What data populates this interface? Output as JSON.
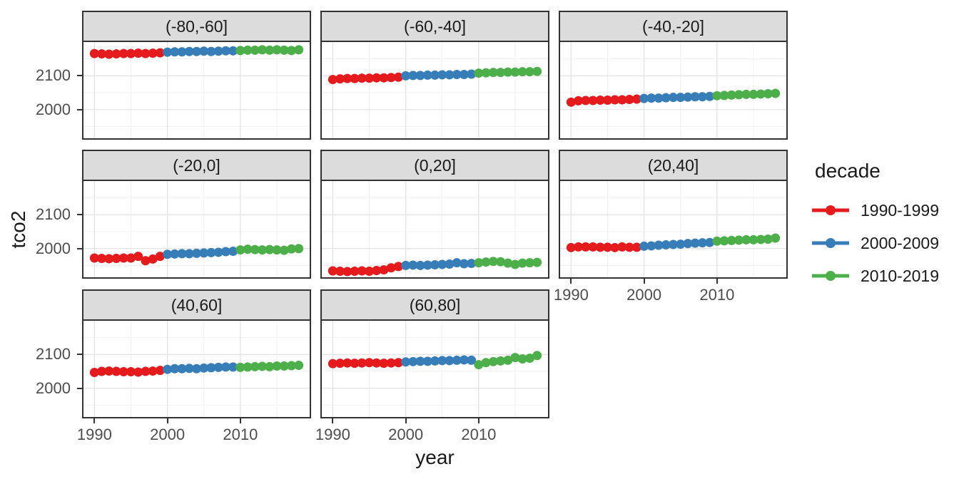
{
  "chart_data": {
    "type": "scatter",
    "xlabel": "year",
    "ylabel": "tco2",
    "x_ticks": [
      1990,
      2000,
      2010
    ],
    "y_ticks": [
      2100,
      2000
    ],
    "x_minor_breaks": [
      1995,
      2005,
      2015
    ],
    "y_minor_breaks": [
      2150,
      2050,
      1950
    ],
    "xlim": [
      1988.5,
      2019.5
    ],
    "ylim": [
      1915,
      2200
    ],
    "grid": true,
    "legend": {
      "title": "decade",
      "position": "right",
      "entries": [
        {
          "label": "1990-1999",
          "color": "#E41A1C"
        },
        {
          "label": "2000-2009",
          "color": "#377EB8"
        },
        {
          "label": "2010-2019",
          "color": "#4DAF4A"
        }
      ]
    },
    "decade_years": {
      "1990-1999": [
        1990,
        1991,
        1992,
        1993,
        1994,
        1995,
        1996,
        1997,
        1998,
        1999
      ],
      "2000-2009": [
        2000,
        2001,
        2002,
        2003,
        2004,
        2005,
        2006,
        2007,
        2008,
        2009
      ],
      "2010-2019": [
        2010,
        2011,
        2012,
        2013,
        2014,
        2015,
        2016,
        2017,
        2018
      ]
    },
    "facets": [
      {
        "label": "(-80,-60]",
        "values": {
          "1990-1999": [
            2166,
            2165,
            2164,
            2165,
            2166,
            2166,
            2167,
            2166,
            2167,
            2168
          ],
          "2000-2009": [
            2170,
            2171,
            2171,
            2172,
            2172,
            2173,
            2172,
            2173,
            2174,
            2174
          ],
          "2010-2019": [
            2175,
            2176,
            2176,
            2177,
            2176,
            2177,
            2176,
            2175,
            2177
          ]
        }
      },
      {
        "label": "(-60,-40]",
        "values": {
          "1990-1999": [
            2089,
            2091,
            2092,
            2092,
            2093,
            2093,
            2094,
            2094,
            2095,
            2096
          ],
          "2000-2009": [
            2100,
            2101,
            2101,
            2102,
            2102,
            2103,
            2103,
            2104,
            2104,
            2105
          ],
          "2010-2019": [
            2108,
            2109,
            2110,
            2110,
            2111,
            2111,
            2112,
            2112,
            2113
          ]
        }
      },
      {
        "label": "(-40,-20]",
        "values": {
          "1990-1999": [
            2022,
            2026,
            2027,
            2027,
            2028,
            2028,
            2029,
            2029,
            2030,
            2031
          ],
          "2000-2009": [
            2033,
            2034,
            2034,
            2035,
            2036,
            2036,
            2037,
            2038,
            2038,
            2039
          ],
          "2010-2019": [
            2041,
            2042,
            2043,
            2044,
            2045,
            2045,
            2046,
            2047,
            2048
          ]
        }
      },
      {
        "label": "(-20,0]",
        "values": {
          "1990-1999": [
            1972,
            1971,
            1970,
            1971,
            1972,
            1972,
            1977,
            1964,
            1969,
            1977
          ],
          "2000-2009": [
            1983,
            1984,
            1985,
            1985,
            1986,
            1987,
            1988,
            1989,
            1991,
            1992
          ],
          "2010-2019": [
            1996,
            1998,
            1997,
            1996,
            1997,
            1996,
            1995,
            1999,
            2000
          ]
        }
      },
      {
        "label": "(0,20]",
        "values": {
          "1990-1999": [
            1934,
            1933,
            1932,
            1933,
            1934,
            1933,
            1935,
            1937,
            1943,
            1947
          ],
          "2000-2009": [
            1950,
            1951,
            1950,
            1951,
            1952,
            1953,
            1954,
            1958,
            1955,
            1956
          ],
          "2010-2019": [
            1958,
            1960,
            1962,
            1961,
            1957,
            1953,
            1957,
            1958,
            1959
          ]
        }
      },
      {
        "label": "(20,40]",
        "values": {
          "1990-1999": [
            2003,
            2005,
            2005,
            2005,
            2004,
            2004,
            2003,
            2005,
            2004,
            2004
          ],
          "2000-2009": [
            2007,
            2008,
            2010,
            2011,
            2012,
            2013,
            2015,
            2016,
            2017,
            2018
          ],
          "2010-2019": [
            2022,
            2023,
            2024,
            2025,
            2026,
            2026,
            2027,
            2028,
            2031
          ]
        }
      },
      {
        "label": "(40,60]",
        "values": {
          "1990-1999": [
            2047,
            2050,
            2051,
            2050,
            2049,
            2049,
            2048,
            2050,
            2051,
            2053
          ],
          "2000-2009": [
            2056,
            2058,
            2058,
            2059,
            2058,
            2060,
            2061,
            2062,
            2063,
            2063
          ],
          "2010-2019": [
            2062,
            2063,
            2064,
            2065,
            2064,
            2066,
            2066,
            2067,
            2068
          ]
        }
      },
      {
        "label": "(60,80]",
        "values": {
          "1990-1999": [
            2073,
            2074,
            2075,
            2074,
            2075,
            2076,
            2075,
            2074,
            2075,
            2076
          ],
          "2000-2009": [
            2078,
            2079,
            2080,
            2080,
            2081,
            2082,
            2082,
            2083,
            2084,
            2083
          ],
          "2010-2019": [
            2070,
            2076,
            2079,
            2081,
            2083,
            2091,
            2087,
            2089,
            2097
          ]
        }
      }
    ],
    "theme": {
      "background": "#FFFFFF",
      "strip_fill": "#DCDCDC",
      "panel_border": "#333333",
      "grid_major": "#E4E4E4",
      "grid_minor": "#F1F1F1",
      "axis_text": "#4D4D4D",
      "title_text": "#1A1A1A"
    }
  }
}
